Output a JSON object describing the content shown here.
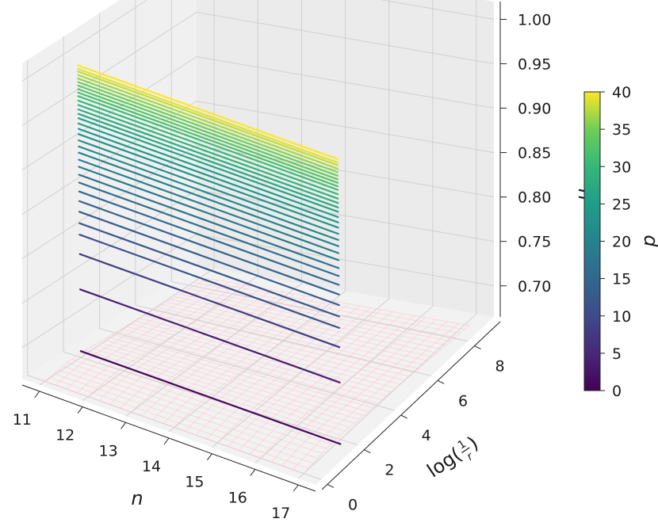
{
  "chart_data": {
    "type": "surface-3d",
    "z_label": "μ",
    "z_label_sub": "r",
    "x_label": "n",
    "y_label": "log(",
    "y_label_frac_num": "1",
    "y_label_frac_den": "r",
    "y_label_close": ")",
    "x_ticks": [
      "11",
      "12",
      "13",
      "14",
      "15",
      "16",
      "17"
    ],
    "y_ticks": [
      "0",
      "2",
      "4",
      "6",
      "8"
    ],
    "z_ticks": [
      "0.70",
      "0.75",
      "0.80",
      "0.85",
      "0.90",
      "0.95",
      "1.00"
    ],
    "x_range": [
      10.6,
      17.4
    ],
    "y_range": [
      -0.3,
      9.4
    ],
    "z_range": [
      0.665,
      1.02
    ],
    "colorbar": {
      "label": "p",
      "colormap": "viridis",
      "ticks": [
        "0",
        "5",
        "10",
        "15",
        "20",
        "25",
        "30",
        "35",
        "40"
      ],
      "range": [
        0,
        40
      ]
    },
    "series": {
      "varies_with": "p",
      "p_values": [
        1,
        4,
        8,
        11,
        12,
        13,
        14,
        15,
        16,
        17,
        18,
        19,
        20,
        21,
        22,
        23,
        24,
        25,
        26,
        27,
        28,
        29,
        30,
        31,
        32,
        33,
        34,
        35,
        36,
        37,
        38,
        39,
        40
      ],
      "mu_r_values": [
        0.672,
        0.742,
        0.782,
        0.804,
        0.817,
        0.83,
        0.842,
        0.853,
        0.863,
        0.872,
        0.881,
        0.889,
        0.897,
        0.904,
        0.911,
        0.918,
        0.924,
        0.93,
        0.936,
        0.941,
        0.946,
        0.951,
        0.956,
        0.961,
        0.965,
        0.969,
        0.973,
        0.977,
        0.981,
        0.985,
        0.989,
        0.992,
        0.996
      ],
      "n_start": 11,
      "n_end": 17,
      "mu_r_change_over_n": -0.012
    },
    "background_surface": {
      "color": "#ffc0cb",
      "opacity": 0.5
    },
    "grid": true,
    "legend": "colorbar-right"
  }
}
